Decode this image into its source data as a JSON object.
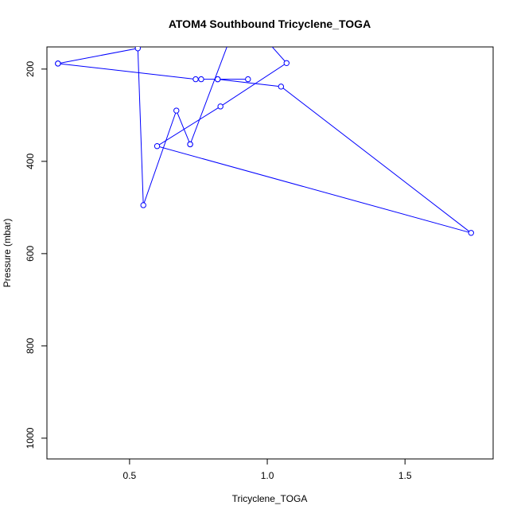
{
  "chart_data": {
    "type": "line",
    "title": "ATOM4 Southbound Tricyclene_TOGA",
    "xlabel": "Tricyclene_TOGA",
    "ylabel": "Pressure (mbar)",
    "xlim": [
      0.2,
      1.82
    ],
    "ylim": [
      1045,
      152
    ],
    "y_reversed": true,
    "grid": false,
    "x_ticks": [
      {
        "value": 0.5,
        "label": "0.5"
      },
      {
        "value": 1.0,
        "label": "1.0"
      },
      {
        "value": 1.5,
        "label": "1.5"
      }
    ],
    "y_ticks": [
      {
        "value": 200,
        "label": "200"
      },
      {
        "value": 400,
        "label": "400"
      },
      {
        "value": 600,
        "label": "600"
      },
      {
        "value": 800,
        "label": "800"
      },
      {
        "value": 1000,
        "label": "1000"
      }
    ],
    "series": [
      {
        "color": "#0000ff",
        "marker": "open-circle",
        "points": [
          {
            "x": 0.24,
            "y": 188
          },
          {
            "x": 0.74,
            "y": 222
          },
          {
            "x": 0.76,
            "y": 222
          },
          {
            "x": 0.82,
            "y": 222
          },
          {
            "x": 0.93,
            "y": 222
          },
          {
            "x": 0.82,
            "y": 222
          },
          {
            "x": 1.05,
            "y": 238
          },
          {
            "x": 1.74,
            "y": 555
          },
          {
            "x": 0.6,
            "y": 367
          },
          {
            "x": 0.83,
            "y": 281
          },
          {
            "x": 1.07,
            "y": 187
          },
          {
            "x": 1.0,
            "y": 140
          },
          {
            "x": 0.88,
            "y": 110
          },
          {
            "x": 0.72,
            "y": 363
          },
          {
            "x": 0.72,
            "y": 363
          },
          {
            "x": 0.67,
            "y": 290
          },
          {
            "x": 0.55,
            "y": 495
          },
          {
            "x": 0.53,
            "y": 155
          },
          {
            "x": 0.24,
            "y": 188
          }
        ]
      }
    ]
  }
}
